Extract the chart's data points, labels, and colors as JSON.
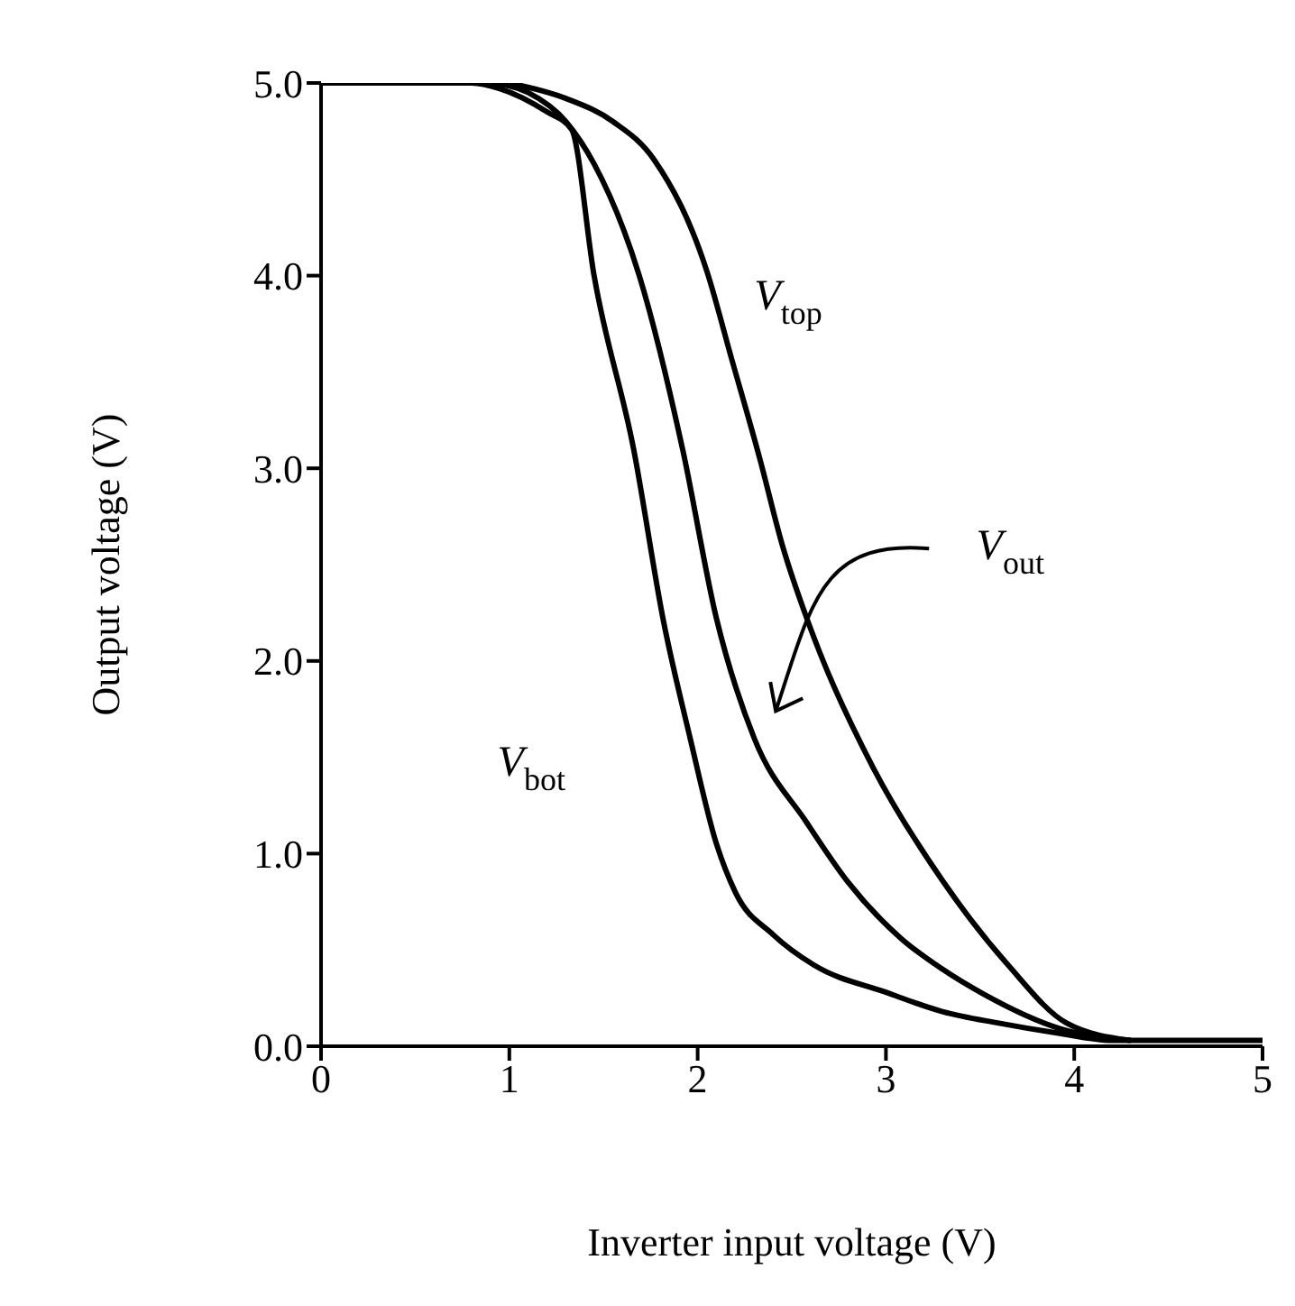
{
  "chart_data": {
    "type": "line",
    "xlabel": "Inverter input voltage (V)",
    "ylabel": "Output voltage (V)",
    "xlim": [
      0,
      5
    ],
    "xticks": [
      0,
      1,
      2,
      3,
      4,
      5
    ],
    "ylim": [
      0,
      5
    ],
    "yticks": [
      {
        "value": 0,
        "label": "0.0"
      },
      {
        "value": 1,
        "label": "1.0"
      },
      {
        "value": 2,
        "label": "2.0"
      },
      {
        "value": 3,
        "label": "3.0"
      },
      {
        "value": 4,
        "label": "4.0"
      },
      {
        "value": 5,
        "label": "5.0"
      }
    ],
    "grid": false,
    "marker": "none",
    "line_style": "solid",
    "series": [
      {
        "name": "V$_{bot}$",
        "color": "#000000",
        "x": [
          0,
          0.8,
          0.95,
          1.2,
          1.33,
          1.45,
          1.66,
          1.82,
          1.96,
          2.1,
          2.2,
          2.4,
          2.62,
          3.0,
          3.3,
          3.6,
          3.9,
          4.2,
          4.5,
          5
        ],
        "values": [
          5,
          5,
          4.97,
          4.85,
          4.76,
          4.0,
          3.1,
          2.2,
          1.6,
          1.05,
          0.8,
          0.58,
          0.42,
          0.28,
          0.18,
          0.12,
          0.07,
          0.03,
          0.03,
          0.03
        ]
      },
      {
        "color": "#000000",
        "x": [
          0.9,
          1.1,
          1.3,
          1.45,
          1.69,
          1.92,
          2.1,
          2.3,
          2.58,
          2.8,
          3.08,
          3.3,
          3.52,
          3.93,
          4.3
        ],
        "values": [
          5,
          4.95,
          4.8,
          4.58,
          4.0,
          3.1,
          2.22,
          1.6,
          1.16,
          0.85,
          0.56,
          0.4,
          0.27,
          0.09,
          0.03
        ]
      },
      {
        "name": "V$_{top}$",
        "color": "#000000",
        "x": [
          1.0,
          1.3,
          1.55,
          1.77,
          2.05,
          2.18,
          2.33,
          2.45,
          2.58,
          2.65,
          2.93,
          3.3,
          3.65,
          3.96,
          4.3
        ],
        "values": [
          5,
          4.92,
          4.8,
          4.6,
          4.02,
          3.57,
          3.05,
          2.6,
          2.22,
          2.04,
          1.45,
          0.86,
          0.42,
          0.12,
          0.03
        ]
      }
    ],
    "annotations": [
      "V$_{out}$"
    ]
  }
}
